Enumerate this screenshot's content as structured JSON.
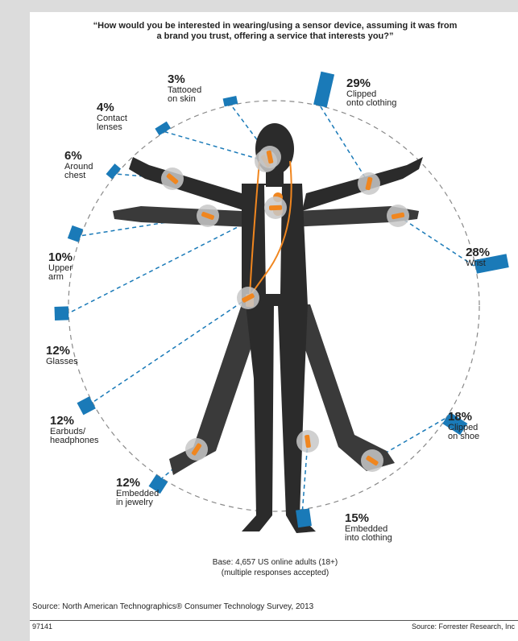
{
  "chart_data": {
    "type": "bar",
    "title_lines": [
      "“How would you be interested in wearing/using a sensor device, assuming it was from",
      "a brand you trust, offering a service that interests you?”"
    ],
    "categories": [
      "Clipped onto clothing",
      "Wrist",
      "Clipped on shoe",
      "Embedded into clothing",
      "Embedded in jewelry",
      "Earbuds/ headphones",
      "Glasses",
      "Upper arm",
      "Around chest",
      "Contact lenses",
      "Tattooed on skin"
    ],
    "values": [
      29,
      28,
      18,
      15,
      12,
      12,
      12,
      10,
      6,
      4,
      3
    ],
    "labels": [
      {
        "pct": "29%",
        "lines": [
          "Clipped",
          "onto clothing"
        ]
      },
      {
        "pct": "28%",
        "lines": [
          "Wrist"
        ]
      },
      {
        "pct": "18%",
        "lines": [
          "Clipped",
          "on shoe"
        ]
      },
      {
        "pct": "15%",
        "lines": [
          "Embedded",
          "into clothing"
        ]
      },
      {
        "pct": "12%",
        "lines": [
          "Embedded",
          "in jewelry"
        ]
      },
      {
        "pct": "12%",
        "lines": [
          "Earbuds/",
          "headphones"
        ]
      },
      {
        "pct": "12%",
        "lines": [
          "Glasses"
        ]
      },
      {
        "pct": "10%",
        "lines": [
          "Upper",
          "arm"
        ]
      },
      {
        "pct": "6%",
        "lines": [
          "Around",
          "chest"
        ]
      },
      {
        "pct": "4%",
        "lines": [
          "Contact",
          "lenses"
        ]
      },
      {
        "pct": "3%",
        "lines": [
          "Tattooed",
          "on skin"
        ]
      }
    ],
    "unit": "%",
    "bar_color": "#1a7ab8",
    "accent_color": "#f0861f"
  },
  "footer": {
    "base_line1": "Base: 4,657 US online adults (18+)",
    "base_line2": "(multiple responses accepted)",
    "source_left": "Source: North American Technographics® Consumer Technology Survey, 2013",
    "code": "97141",
    "source_right": "Source: Forrester Research, Inc"
  },
  "colors": {
    "background": "#dcdcdc",
    "card": "#ffffff",
    "figure": "#2b2b2b",
    "circle": "#8a8a8a"
  }
}
